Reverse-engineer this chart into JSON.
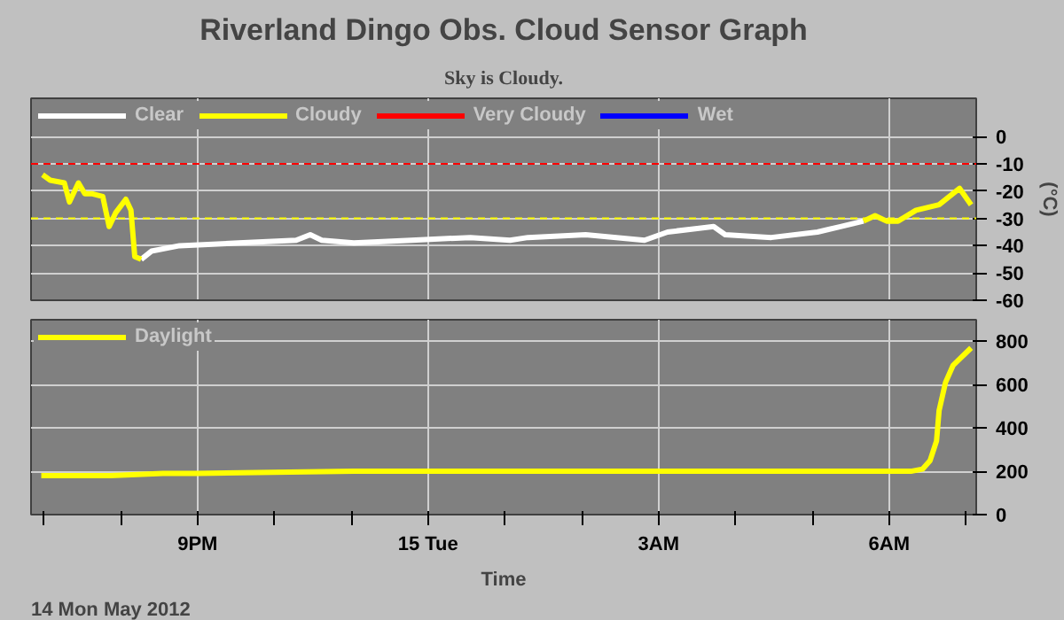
{
  "chart_data": [
    {
      "type": "line",
      "title": "Riverland Dingo Obs. Cloud Sensor Graph",
      "subtitle": "Sky is Cloudy.",
      "ylabel": "(°C)",
      "xlim": [
        "2012-05-14T18:50",
        "2012-05-15T07:08"
      ],
      "ylim": [
        -60,
        14
      ],
      "yticks": [
        0,
        -10,
        -20,
        -30,
        -40,
        -50,
        -60
      ],
      "xticks": [
        "2012-05-14T21:00",
        "2012-05-15T00:00",
        "2012-05-15T03:00",
        "2012-05-15T06:00"
      ],
      "tick_labels": "y",
      "grid": true,
      "legend": "top left",
      "line_style": "solid",
      "ref_lines": [
        {
          "axis": "y",
          "value": -10,
          "color": "#ff0000",
          "line_style": "dashed"
        },
        {
          "axis": "y",
          "value": -30,
          "color": "#ffff00",
          "line_style": "dashed"
        }
      ],
      "series": [
        {
          "name": "Clear",
          "color": "#ffffff",
          "x": [
            "2012-05-14T20:16",
            "2012-05-14T20:24",
            "2012-05-14T20:46",
            "2012-05-14T21:32",
            "2012-05-14T22:17",
            "2012-05-14T22:28",
            "2012-05-14T22:37",
            "2012-05-14T23:02",
            "2012-05-14T23:47",
            "2012-05-15T00:33",
            "2012-05-15T01:04",
            "2012-05-15T01:18",
            "2012-05-15T02:03",
            "2012-05-15T02:49",
            "2012-05-15T03:07",
            "2012-05-15T03:43",
            "2012-05-15T03:52",
            "2012-05-15T04:28",
            "2012-05-15T05:04",
            "2012-05-15T05:22",
            "2012-05-15T05:40"
          ],
          "values": [
            -45,
            -42,
            -40,
            -39,
            -38,
            -36,
            -38,
            -39,
            -38,
            -37,
            -38,
            -37,
            -36,
            -38,
            -35,
            -33,
            -36,
            -37,
            -35,
            -33,
            -31
          ]
        },
        {
          "name": "Cloudy",
          "color": "#ffff00",
          "x": [
            "2012-05-14T18:59",
            "2012-05-14T19:05",
            "2012-05-14T19:16",
            "2012-05-14T19:20",
            "2012-05-14T19:27",
            "2012-05-14T19:32",
            "2012-05-14T19:38",
            "2012-05-14T19:46",
            "2012-05-14T19:51",
            "2012-05-14T19:56",
            "2012-05-14T20:04",
            "2012-05-14T20:08",
            "2012-05-14T20:11",
            "2012-05-14T20:16",
            "2012-05-15T01:00",
            "2012-05-15T05:40",
            "2012-05-15T05:49",
            "2012-05-15T05:58",
            "2012-05-15T06:07",
            "2012-05-15T06:21",
            "2012-05-15T06:39",
            "2012-05-15T06:55",
            "2012-05-15T07:04"
          ],
          "values": [
            -14,
            -16,
            -17,
            -24,
            -17,
            -21,
            -21,
            -22,
            -33,
            -28,
            -23,
            -27,
            -44,
            -45,
            null,
            -31,
            -29,
            -31,
            -31,
            -27,
            -25,
            -19,
            -25
          ]
        },
        {
          "name": "Very Cloudy",
          "color": "#ff0000"
        },
        {
          "name": "Wet",
          "color": "#0000ff"
        }
      ]
    },
    {
      "type": "line",
      "xlabel": "Time",
      "annotations": [
        "14 Mon May 2012"
      ],
      "xlim": [
        "2012-05-14T18:50",
        "2012-05-15T07:08"
      ],
      "ylim": [
        0,
        900
      ],
      "yticks": [
        0,
        200,
        400,
        600,
        800
      ],
      "xticks": [
        {
          "value": "2012-05-14T19:00",
          "label": null
        },
        {
          "value": "2012-05-14T20:00",
          "label": null
        },
        {
          "value": "2012-05-14T21:00",
          "label": "9PM"
        },
        {
          "value": "2012-05-14T22:00",
          "label": null
        },
        {
          "value": "2012-05-14T23:00",
          "label": null
        },
        {
          "value": "2012-05-15T00:00",
          "label": "15 Tue"
        },
        {
          "value": "2012-05-15T01:00",
          "label": null
        },
        {
          "value": "2012-05-15T02:00",
          "label": null
        },
        {
          "value": "2012-05-15T03:00",
          "label": "3AM"
        },
        {
          "value": "2012-05-15T04:00",
          "label": null
        },
        {
          "value": "2012-05-15T05:00",
          "label": null
        },
        {
          "value": "2012-05-15T06:00",
          "label": "6AM"
        },
        {
          "value": "2012-05-15T07:00",
          "label": null
        }
      ],
      "grid": true,
      "legend": "top left",
      "line_style": "solid",
      "series": [
        {
          "name": "Daylight",
          "color": "#ffff00",
          "x": [
            "2012-05-14T18:58",
            "2012-05-14T19:52",
            "2012-05-14T20:33",
            "2012-05-14T21:00",
            "2012-05-14T23:02",
            "2012-05-15T01:18",
            "2012-05-15T03:34",
            "2012-05-15T05:49",
            "2012-05-15T06:17",
            "2012-05-15T06:26",
            "2012-05-15T06:32",
            "2012-05-15T06:37",
            "2012-05-15T06:39",
            "2012-05-15T06:44",
            "2012-05-15T06:50",
            "2012-05-15T07:04"
          ],
          "values": [
            180,
            180,
            190,
            190,
            200,
            200,
            200,
            200,
            200,
            210,
            250,
            340,
            480,
            610,
            690,
            770
          ]
        }
      ]
    }
  ]
}
